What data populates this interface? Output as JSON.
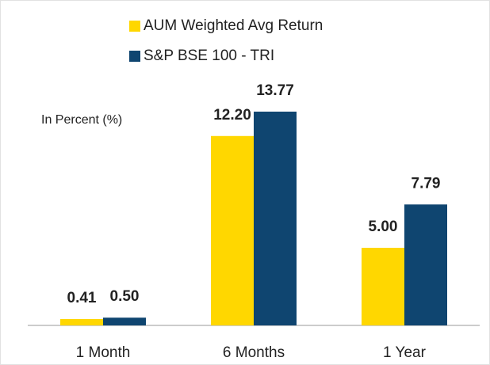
{
  "chart_data": {
    "type": "bar",
    "annotations": [
      "In Percent (%)"
    ],
    "categories": [
      "1 Month",
      "6 Months",
      "1 Year"
    ],
    "series": [
      {
        "name": "AUM Weighted Avg Return",
        "color": "#ffd700",
        "values": [
          0.41,
          12.2,
          5.0
        ],
        "value_labels": [
          "0.41",
          "12.20",
          "5.00"
        ]
      },
      {
        "name": "S&P BSE 100 - TRI",
        "color": "#0f4570",
        "values": [
          0.5,
          13.77,
          7.79
        ],
        "value_labels": [
          "0.50",
          "13.77",
          "7.79"
        ]
      }
    ],
    "legend": "top"
  }
}
